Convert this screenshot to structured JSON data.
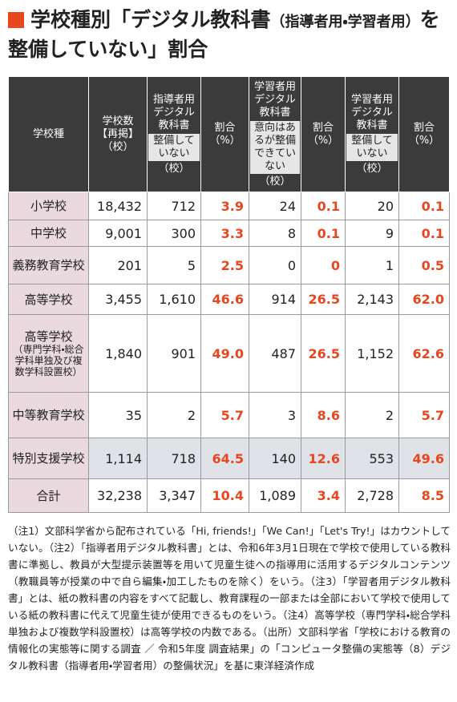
{
  "header": {
    "title": "学校種別「デジタル教科書",
    "title_paren": "（指導者用・学習者用）",
    "title_end": "を",
    "title_line2": "整備していない」割合"
  },
  "table": {
    "columns": [
      {
        "label": "学校種"
      },
      {
        "label": "学校数",
        "sub": "【再掲】",
        "unit": "（校）"
      },
      {
        "label": "指導者用デジタル教科書",
        "tag": "整備していない",
        "unit": "（校）"
      },
      {
        "label": "割合",
        "unit": "（%）"
      },
      {
        "label": "学習者用デジタル教科書",
        "tag": "意向はあるが整備できていない",
        "unit": "（校）"
      },
      {
        "label": "割合",
        "unit": "（%）"
      },
      {
        "label": "学習者用デジタル教科書",
        "tag": "整備していない",
        "unit": "（校）"
      },
      {
        "label": "割合",
        "unit": "（%）"
      }
    ],
    "rows": [
      {
        "label": "小学校",
        "values": [
          "18,432",
          "712",
          "3.9",
          "24",
          "0.1",
          "20",
          "0.1"
        ]
      },
      {
        "label": "中学校",
        "values": [
          "9,001",
          "300",
          "3.3",
          "8",
          "0.1",
          "9",
          "0.1"
        ]
      },
      {
        "label": "義務教育学校",
        "values": [
          "201",
          "5",
          "2.5",
          "0",
          "0",
          "1",
          "0.5"
        ]
      },
      {
        "label": "高等学校",
        "values": [
          "3,455",
          "1,610",
          "46.6",
          "914",
          "26.5",
          "2,143",
          "62.0"
        ]
      },
      {
        "label": "高等学校",
        "sublabel": "（専門学科・総合学科単独及び複数学科設置校）",
        "values": [
          "1,840",
          "901",
          "49.0",
          "487",
          "26.5",
          "1,152",
          "62.6"
        ]
      },
      {
        "label": "中等教育学校",
        "values": [
          "35",
          "2",
          "5.7",
          "3",
          "8.6",
          "2",
          "5.7"
        ]
      },
      {
        "label": "特別支援学校",
        "values": [
          "1,114",
          "718",
          "64.5",
          "140",
          "12.6",
          "553",
          "49.6"
        ]
      },
      {
        "label": "合計",
        "values": [
          "32,238",
          "3,347",
          "10.4",
          "1,089",
          "3.4",
          "2,728",
          "8.5"
        ]
      }
    ]
  },
  "notes": "（注1）文部科学省から配布されている「Hi, friends!」「We Can!」「Let's Try!」はカウントしていない。（注2）「指導者用デジタル教科書」とは、令和6年3月1日現在で学校で使用している教科書に準拠し、教員が大型提示装置等を用いて児童生徒への指導用に活用するデジタルコンテンツ（教職員等が授業の中で自ら編集・加工したものを除く）をいう。（注3）「学習者用デジタル教科書」とは、紙の教科書の内容をすべて記載し、教育課程の一部または全部において学校で使用している紙の教科書に代えて児童生徒が使用できるものをいう。（注4）高等学校（専門学科・総合学科単独および複数学科設置校）は高等学校の内数である。（出所）文部科学省「学校における教育の情報化の実態等に関する調査 ／ 令和5年度 調査結果」の「コンピュータ整備の実態等（8）デジタル教科書（指導者用・学習者用）の整備状況」を基に東洋経済作成"
}
